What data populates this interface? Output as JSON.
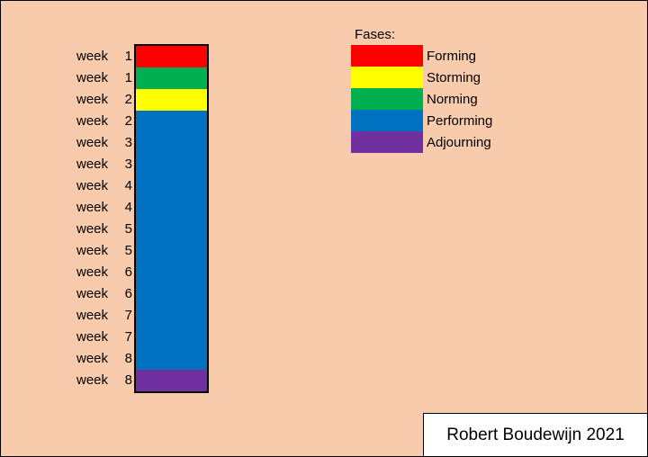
{
  "weeks": [
    {
      "label": "week",
      "num": "1"
    },
    {
      "label": "week",
      "num": "1"
    },
    {
      "label": "week",
      "num": "2"
    },
    {
      "label": "week",
      "num": "2"
    },
    {
      "label": "week",
      "num": "3"
    },
    {
      "label": "week",
      "num": "3"
    },
    {
      "label": "week",
      "num": "4"
    },
    {
      "label": "week",
      "num": "4"
    },
    {
      "label": "week",
      "num": "5"
    },
    {
      "label": "week",
      "num": "5"
    },
    {
      "label": "week",
      "num": "6"
    },
    {
      "label": "week",
      "num": "6"
    },
    {
      "label": "week",
      "num": "7"
    },
    {
      "label": "week",
      "num": "7"
    },
    {
      "label": "week",
      "num": "8"
    },
    {
      "label": "week",
      "num": "8"
    }
  ],
  "segments": [
    "Forming",
    "Norming",
    "Storming",
    "Performing",
    "Performing",
    "Performing",
    "Performing",
    "Performing",
    "Performing",
    "Performing",
    "Performing",
    "Performing",
    "Performing",
    "Performing",
    "Performing",
    "Adjourning"
  ],
  "legend": {
    "title": "Fases:",
    "items": [
      {
        "label": "Forming",
        "color": "#ff0000"
      },
      {
        "label": "Storming",
        "color": "#ffff00"
      },
      {
        "label": "Norming",
        "color": "#00b050"
      },
      {
        "label": "Performing",
        "color": "#0070c0"
      },
      {
        "label": "Adjourning",
        "color": "#7030a0"
      }
    ]
  },
  "credit": "Robert Boudewijn 2021"
}
